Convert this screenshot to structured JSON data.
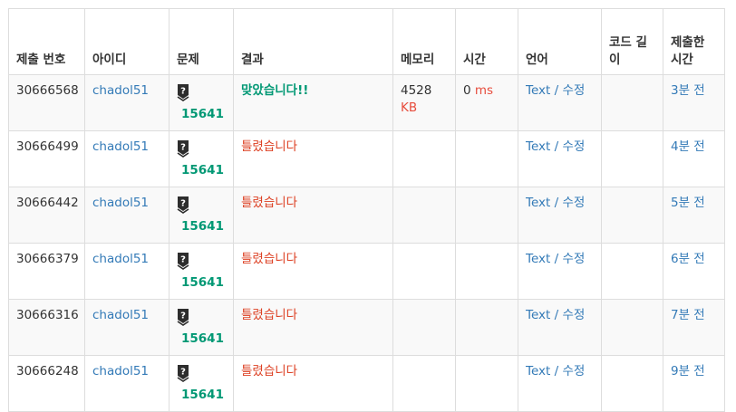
{
  "headers": {
    "submission_id": "제출 번호",
    "user_id": "아이디",
    "problem": "문제",
    "result": "결과",
    "memory": "메모리",
    "time": "시간",
    "language": "언어",
    "code_length": "코드 길이",
    "submitted_at": "제출한 시간"
  },
  "rows": [
    {
      "id": "30666568",
      "user": "chadol51",
      "problem": "15641",
      "result": "맞았습니다!!",
      "result_type": "ac",
      "memory": "4528",
      "memory_unit": "KB",
      "time": "0",
      "time_unit": "ms",
      "lang": "Text",
      "edit": "수정",
      "code_length": "",
      "when": "3분 전"
    },
    {
      "id": "30666499",
      "user": "chadol51",
      "problem": "15641",
      "result": "틀렸습니다",
      "result_type": "wa",
      "memory": "",
      "memory_unit": "",
      "time": "",
      "time_unit": "",
      "lang": "Text",
      "edit": "수정",
      "code_length": "",
      "when": "4분 전"
    },
    {
      "id": "30666442",
      "user": "chadol51",
      "problem": "15641",
      "result": "틀렸습니다",
      "result_type": "wa",
      "memory": "",
      "memory_unit": "",
      "time": "",
      "time_unit": "",
      "lang": "Text",
      "edit": "수정",
      "code_length": "",
      "when": "5분 전"
    },
    {
      "id": "30666379",
      "user": "chadol51",
      "problem": "15641",
      "result": "틀렸습니다",
      "result_type": "wa",
      "memory": "",
      "memory_unit": "",
      "time": "",
      "time_unit": "",
      "lang": "Text",
      "edit": "수정",
      "code_length": "",
      "when": "6분 전"
    },
    {
      "id": "30666316",
      "user": "chadol51",
      "problem": "15641",
      "result": "틀렸습니다",
      "result_type": "wa",
      "memory": "",
      "memory_unit": "",
      "time": "",
      "time_unit": "",
      "lang": "Text",
      "edit": "수정",
      "code_length": "",
      "when": "7분 전"
    },
    {
      "id": "30666248",
      "user": "chadol51",
      "problem": "15641",
      "result": "틀렸습니다",
      "result_type": "wa",
      "memory": "",
      "memory_unit": "",
      "time": "",
      "time_unit": "",
      "lang": "Text",
      "edit": "수정",
      "code_length": "",
      "when": "9분 전"
    }
  ],
  "icons": {
    "problem_tier": "unrated-shield-icon"
  },
  "colors": {
    "link": "#337ab7",
    "accepted": "#009874",
    "wrong": "#dd4124",
    "unit": "#e74c3c",
    "stripe": "#f9f9f9",
    "border": "#dddddd"
  }
}
